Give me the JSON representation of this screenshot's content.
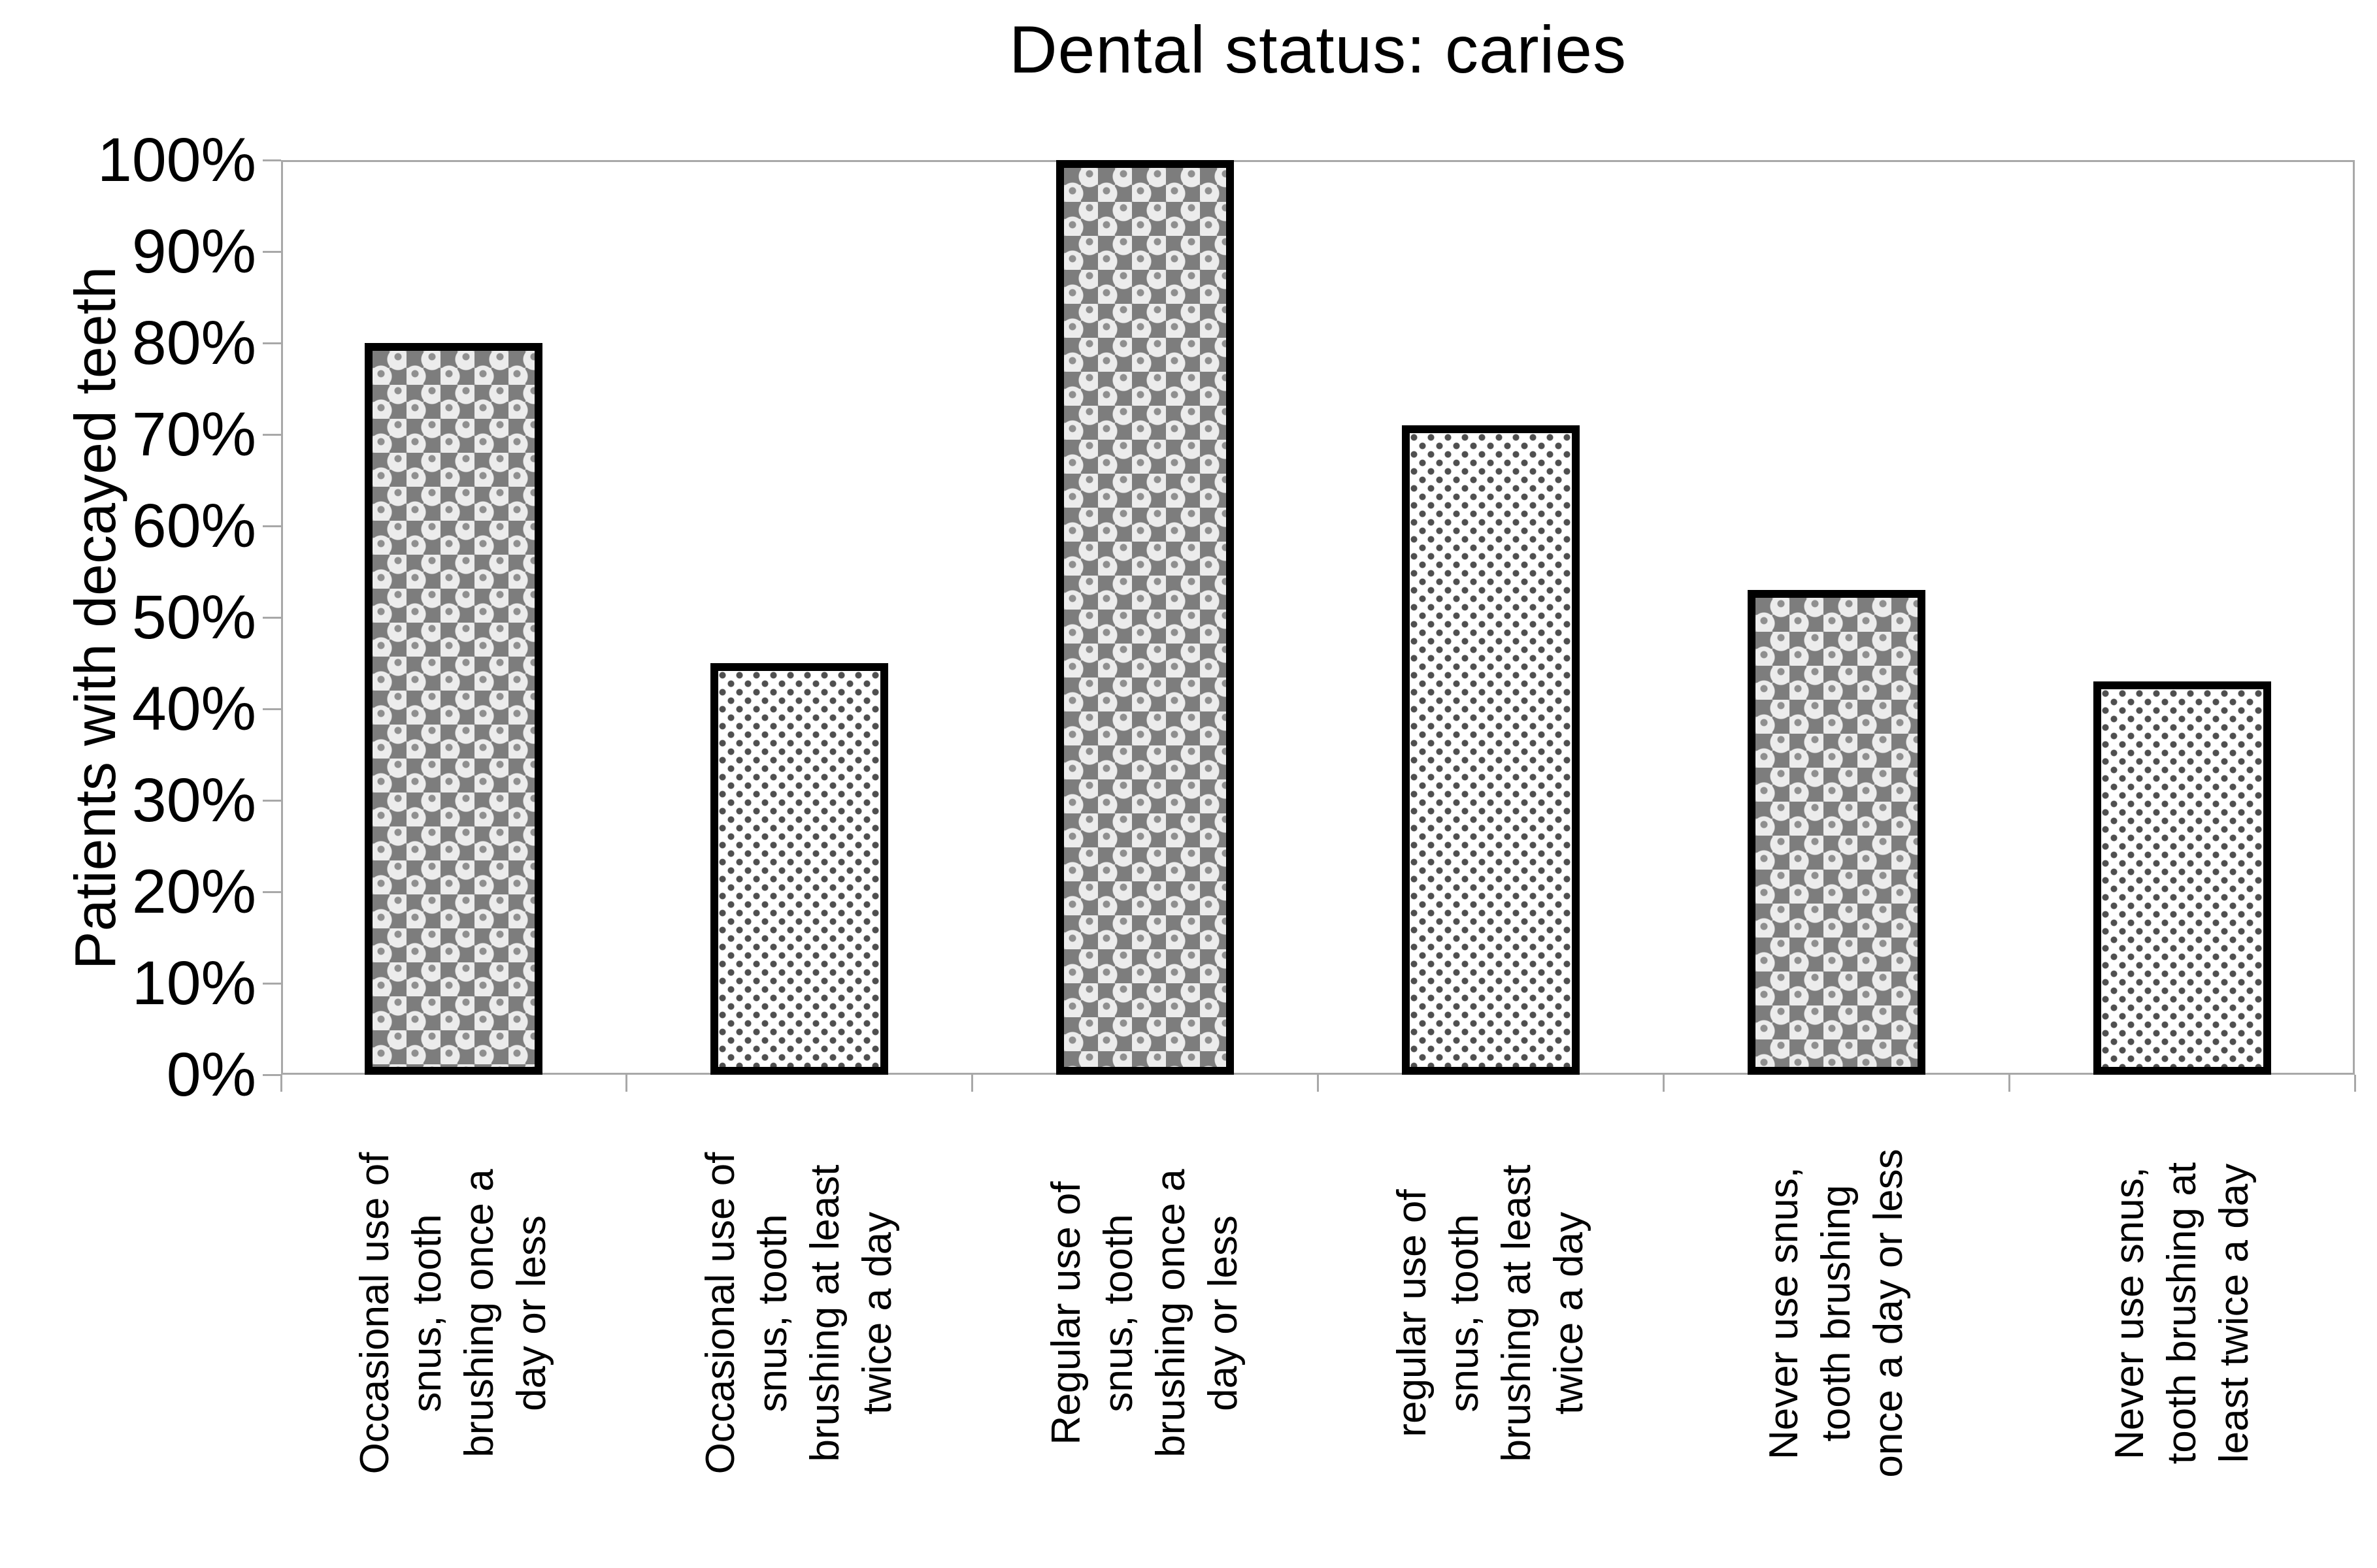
{
  "chart_data": {
    "type": "bar",
    "title": "Dental status: caries",
    "ylabel": "Patients with decayed teeth",
    "xlabel": "",
    "categories": [
      "Occasional use of snus, tooth brushing once a day or less",
      "Occasional use of snus, tooth brushing at least twice a day",
      "Regular use of snus, tooth brushing once a day or less",
      "regular use of snus, tooth brushing at least twice a day",
      "Never use snus, tooth brushing once a day or less",
      "Never use snus, tooth brushing at least twice a day"
    ],
    "category_label_lines": [
      [
        "Occasional use of",
        "snus, tooth",
        "brushing once a",
        "day or less"
      ],
      [
        "Occasional use of",
        "snus, tooth",
        "brushing at least",
        "twice a day"
      ],
      [
        "Regular use of",
        "snus, tooth",
        "brushing once a",
        "day or less"
      ],
      [
        "regular use of",
        "snus, tooth",
        "brushing at least",
        "twice a day"
      ],
      [
        "Never use snus,",
        "tooth brushing",
        "once a day or less"
      ],
      [
        "Never use snus,",
        "tooth brushing at",
        "least twice a day"
      ]
    ],
    "values": [
      80,
      45,
      100,
      71,
      53,
      43
    ],
    "unit": "%",
    "ylim": [
      0,
      100
    ],
    "ytick_step": 10,
    "yticks": [
      "100%",
      "90%",
      "80%",
      "70%",
      "60%",
      "50%",
      "40%",
      "30%",
      "20%",
      "10%",
      "0%"
    ],
    "bar_patterns": [
      "checker",
      "dots",
      "checker",
      "dots",
      "checker",
      "dots"
    ],
    "legend": "none",
    "grid": "plot border only, no interior gridlines",
    "colors": {
      "background": "#ffffff",
      "text": "#000000",
      "axis": "#a8a8a8",
      "bar_border": "#000000",
      "checker_dark": "#7d7d7d",
      "checker_light": "#ececec",
      "checker_base": "#cfcfcf",
      "dot": "#4f4f4f"
    }
  }
}
